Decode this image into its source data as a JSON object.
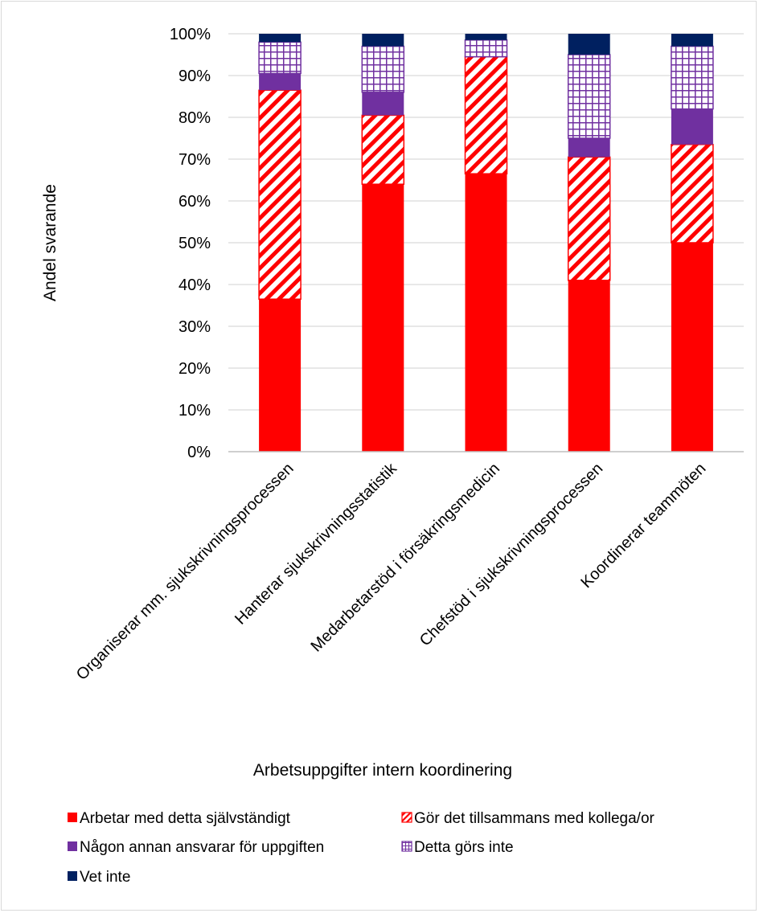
{
  "chart_data": {
    "type": "bar",
    "stacked": true,
    "title": "",
    "xlabel": "Arbetsuppgifter intern koordinering",
    "ylabel": "Andel svarande",
    "ylim": [
      0,
      100
    ],
    "yticks": [
      "0%",
      "10%",
      "20%",
      "30%",
      "40%",
      "50%",
      "60%",
      "70%",
      "80%",
      "90%",
      "100%"
    ],
    "grid": true,
    "legend_position": "bottom",
    "categories": [
      "Organiserar mm. sjukskrivningsprocessen",
      "Hanterar sjukskrivningsstatistik",
      "Medarbetarstöd i försäkringsmedicin",
      "Chefstöd i  sjukskrivningsprocessen",
      "Koordinerar teammöten"
    ],
    "series": [
      {
        "name": "Arbetar med detta självständigt",
        "color": "#ff0000",
        "pattern": "solid",
        "values": [
          36.5,
          64,
          66.5,
          41,
          50
        ]
      },
      {
        "name": "Gör det tillsammans med kollega/or",
        "color": "#ff0000",
        "pattern": "diagonal",
        "values": [
          50,
          16.5,
          28,
          29.5,
          23.5
        ]
      },
      {
        "name": "Någon annan ansvarar för uppgiften",
        "color": "#7030a0",
        "pattern": "solid",
        "values": [
          4,
          5.5,
          0,
          4.5,
          8.5
        ]
      },
      {
        "name": "Detta görs inte",
        "color": "#7030a0",
        "pattern": "grid",
        "values": [
          7.5,
          11,
          4,
          20,
          15
        ]
      },
      {
        "name": "Vet inte",
        "color": "#002060",
        "pattern": "solid",
        "values": [
          2,
          3,
          1.5,
          5,
          3
        ]
      }
    ]
  }
}
